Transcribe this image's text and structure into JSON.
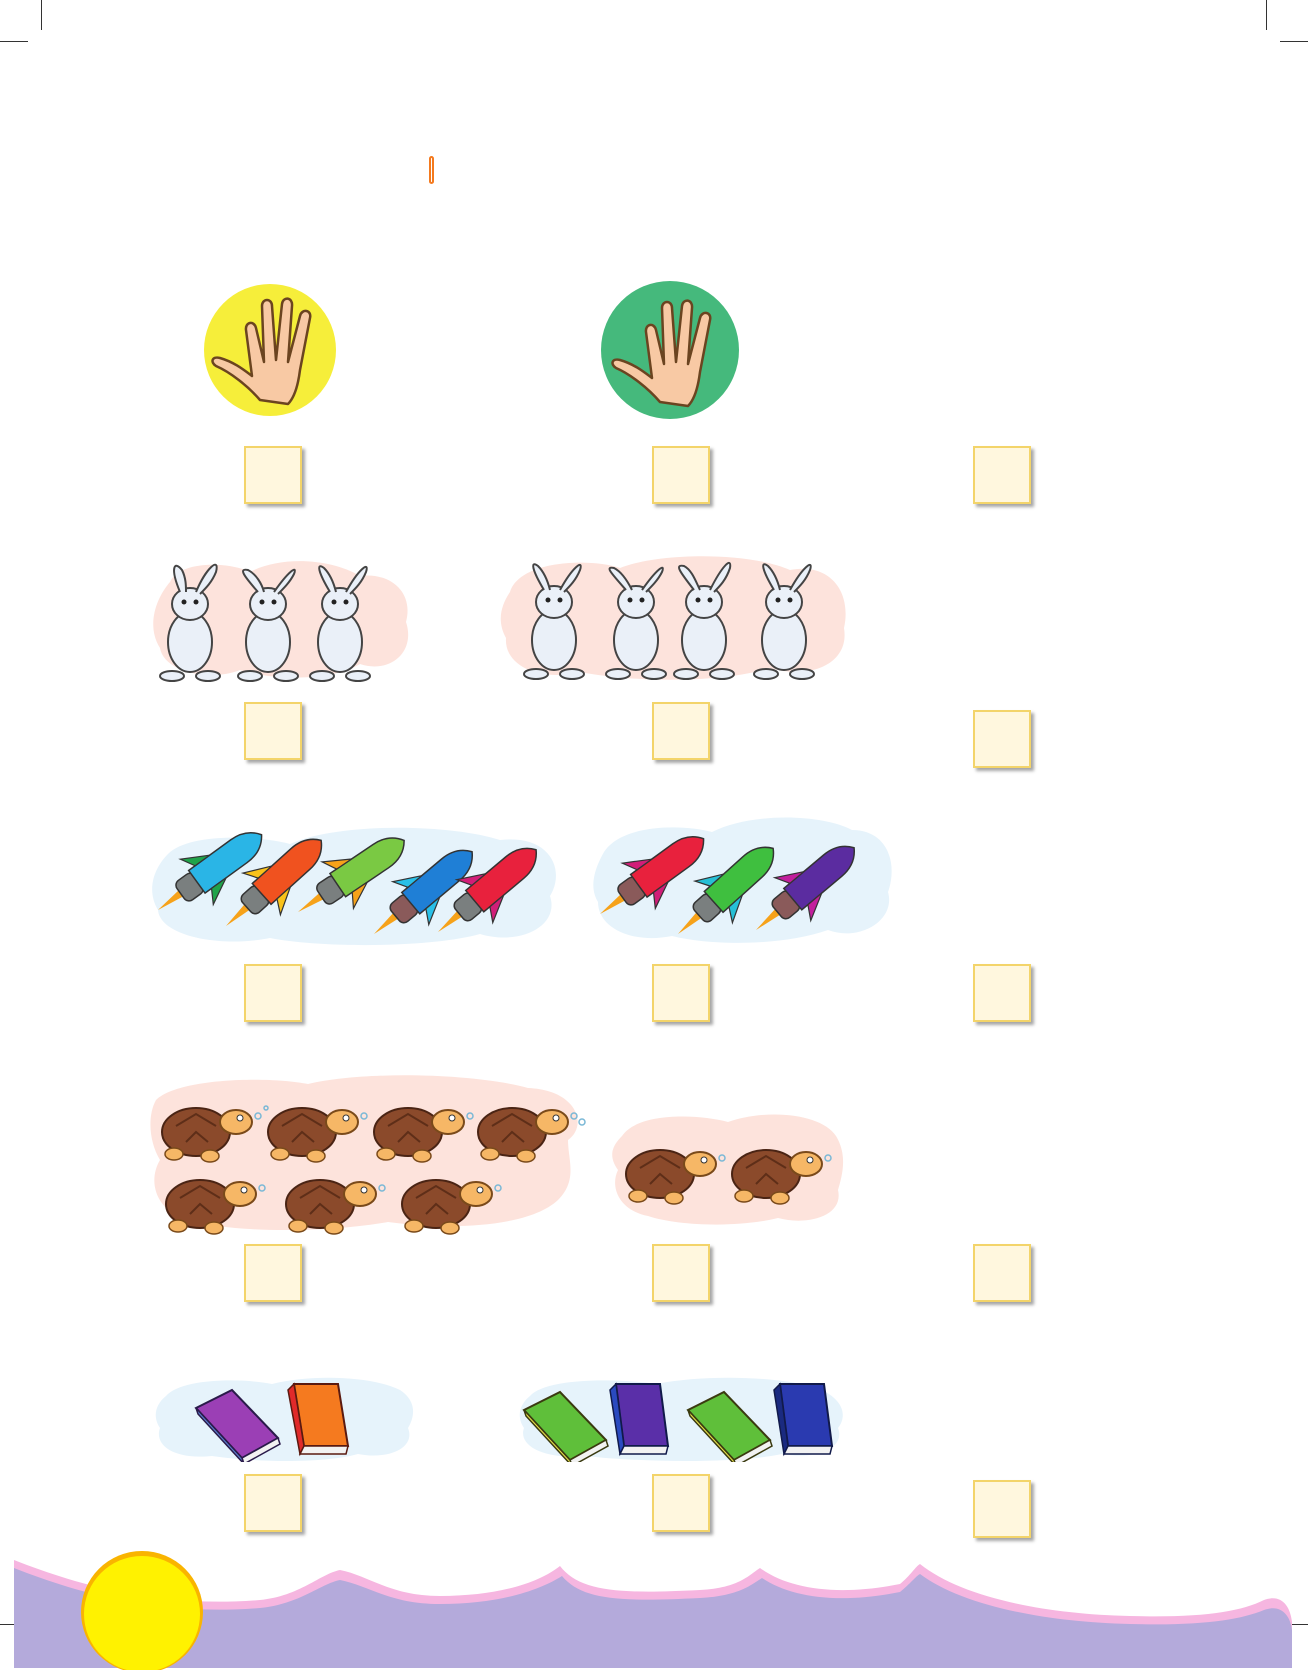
{
  "page": {
    "title_marker": "",
    "colors": {
      "yellow_circle": "#f6ee3a",
      "green_circle": "#45b97c",
      "answer_box_fill": "#fff7de",
      "answer_box_border": "#f3d46a",
      "pink_cloud": "#fde3dc",
      "blue_cloud": "#e6f3fb",
      "wave_purple": "#b4aadb",
      "wave_pink": "#f6b6e0",
      "sun_yellow": "#fff200",
      "title_marker": "#f47a1f"
    }
  },
  "rows": [
    {
      "id": "hands",
      "left_icon": "open-hand-icon",
      "left_count": 5,
      "right_icon": "open-hand-icon",
      "right_count": 5
    },
    {
      "id": "rabbits",
      "left_icon": "rabbit-icon",
      "left_count": 3,
      "right_icon": "rabbit-icon",
      "right_count": 4
    },
    {
      "id": "rockets",
      "left_icon": "rocket-icon",
      "left_count": 5,
      "right_icon": "rocket-icon",
      "right_count": 3
    },
    {
      "id": "turtles",
      "left_icon": "turtle-icon",
      "left_count": 7,
      "right_icon": "turtle-icon",
      "right_count": 2
    },
    {
      "id": "books",
      "left_icon": "book-icon",
      "left_count": 2,
      "right_icon": "book-icon",
      "right_count": 4
    }
  ]
}
